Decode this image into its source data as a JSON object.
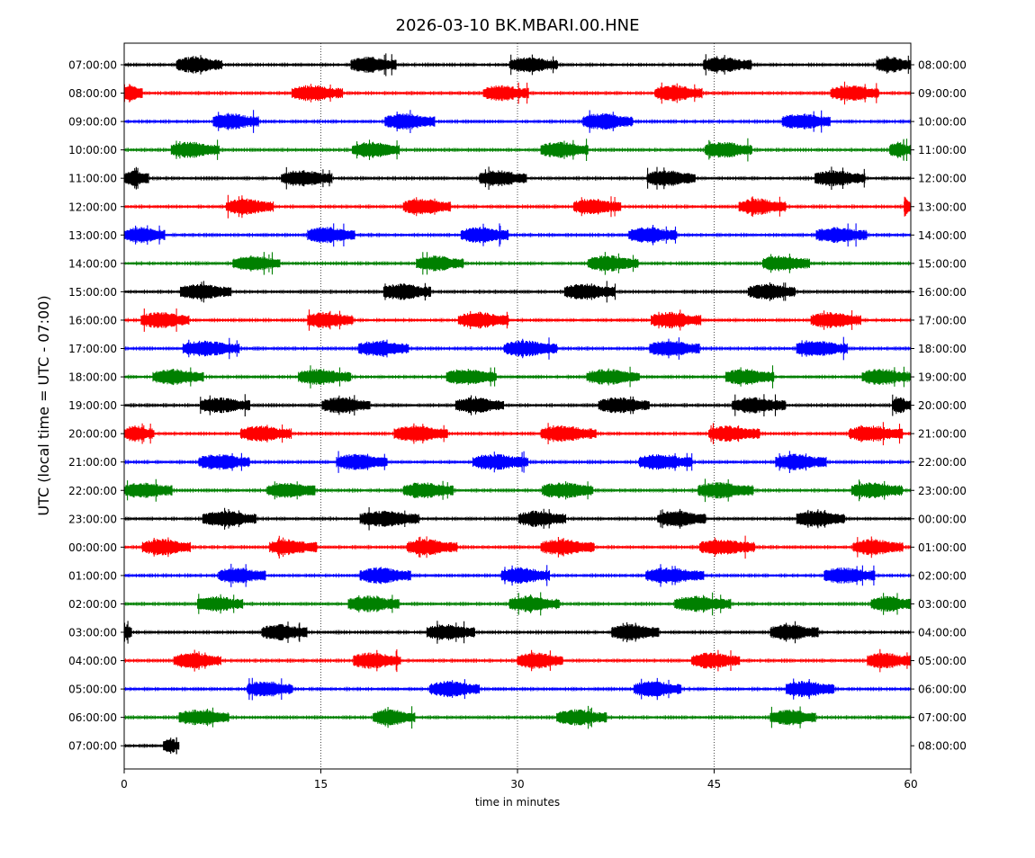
{
  "chart_data": {
    "type": "line",
    "title": "2026-03-10 BK.MBARI.00.HNE",
    "xlabel": "time in minutes",
    "ylabel": "UTC (local time = UTC - 07:00)",
    "xlim": [
      0,
      60
    ],
    "x_ticks": [
      "0",
      "15",
      "30",
      "45",
      "60"
    ],
    "x_tick_values": [
      0,
      15,
      30,
      45,
      60
    ],
    "grid": "vertical dotted lines at 15, 30, 45",
    "series_colors": [
      "#000000",
      "#ff0000",
      "#0000ff",
      "#008000"
    ],
    "rows": [
      {
        "left": "07:00:00",
        "right": "08:00:00",
        "bursts": [
          [
            4,
            7.5
          ],
          [
            17.3,
            20.8
          ],
          [
            29.4,
            33.1
          ],
          [
            44.2,
            47.9
          ],
          [
            57.4,
            60
          ]
        ]
      },
      {
        "left": "08:00:00",
        "right": "09:00:00",
        "bursts": [
          [
            0,
            1.4
          ],
          [
            12.8,
            16.7
          ],
          [
            27.4,
            30.9
          ],
          [
            40.5,
            44.1
          ],
          [
            53.9,
            57.6
          ]
        ]
      },
      {
        "left": "09:00:00",
        "right": "10:00:00",
        "bursts": [
          [
            6.8,
            10.3
          ],
          [
            19.9,
            23.7
          ],
          [
            35,
            38.8
          ],
          [
            50.2,
            53.9
          ]
        ]
      },
      {
        "left": "10:00:00",
        "right": "11:00:00",
        "bursts": [
          [
            3.6,
            7.3
          ],
          [
            17.4,
            21
          ],
          [
            31.8,
            35.4
          ],
          [
            44.3,
            47.9
          ],
          [
            58.4,
            60
          ]
        ]
      },
      {
        "left": "11:00:00",
        "right": "12:00:00",
        "bursts": [
          [
            0,
            1.9
          ],
          [
            12,
            15.9
          ],
          [
            27.1,
            30.7
          ],
          [
            39.9,
            43.6
          ],
          [
            52.7,
            56.5
          ]
        ]
      },
      {
        "left": "12:00:00",
        "right": "13:00:00",
        "bursts": [
          [
            7.8,
            11.4
          ],
          [
            21.3,
            24.9
          ],
          [
            34.3,
            37.9
          ],
          [
            46.9,
            50.5
          ],
          [
            59.5,
            60
          ]
        ]
      },
      {
        "left": "13:00:00",
        "right": "14:00:00",
        "bursts": [
          [
            0,
            3.1
          ],
          [
            14,
            17.6
          ],
          [
            25.7,
            29.3
          ],
          [
            38.5,
            42.2
          ],
          [
            52.8,
            56.7
          ]
        ]
      },
      {
        "left": "14:00:00",
        "right": "15:00:00",
        "bursts": [
          [
            8.3,
            11.9
          ],
          [
            22.3,
            25.9
          ],
          [
            35.4,
            39.2
          ],
          [
            48.7,
            52.3
          ]
        ]
      },
      {
        "left": "15:00:00",
        "right": "16:00:00",
        "bursts": [
          [
            4.3,
            8.2
          ],
          [
            19.8,
            23.4
          ],
          [
            33.6,
            37.5
          ],
          [
            47.6,
            51.2
          ]
        ]
      },
      {
        "left": "16:00:00",
        "right": "17:00:00",
        "bursts": [
          [
            1.3,
            5
          ],
          [
            14,
            17.5
          ],
          [
            25.5,
            29.3
          ],
          [
            40.2,
            44
          ],
          [
            52.4,
            56.2
          ]
        ]
      },
      {
        "left": "17:00:00",
        "right": "18:00:00",
        "bursts": [
          [
            4.5,
            8.8
          ],
          [
            17.9,
            21.7
          ],
          [
            29,
            33
          ],
          [
            40.1,
            43.9
          ],
          [
            51.3,
            55.2
          ]
        ]
      },
      {
        "left": "18:00:00",
        "right": "19:00:00",
        "bursts": [
          [
            2.2,
            6.1
          ],
          [
            13.3,
            17.3
          ],
          [
            24.6,
            28.4
          ],
          [
            35.3,
            39.3
          ],
          [
            45.9,
            49.6
          ],
          [
            56.3,
            60
          ]
        ]
      },
      {
        "left": "19:00:00",
        "right": "20:00:00",
        "bursts": [
          [
            5.8,
            9.6
          ],
          [
            15.1,
            18.8
          ],
          [
            25.3,
            29
          ],
          [
            36.2,
            40.1
          ],
          [
            46.4,
            50.5
          ],
          [
            58.6,
            60
          ]
        ]
      },
      {
        "left": "20:00:00",
        "right": "21:00:00",
        "bursts": [
          [
            0,
            2.3
          ],
          [
            8.9,
            12.8
          ],
          [
            20.6,
            24.7
          ],
          [
            31.8,
            36
          ],
          [
            44.6,
            48.5
          ],
          [
            55.3,
            59.4
          ]
        ]
      },
      {
        "left": "21:00:00",
        "right": "22:00:00",
        "bursts": [
          [
            5.7,
            9.6
          ],
          [
            16.2,
            20.1
          ],
          [
            26.6,
            30.8
          ],
          [
            39.3,
            43.3
          ],
          [
            49.7,
            53.6
          ]
        ]
      },
      {
        "left": "22:00:00",
        "right": "23:00:00",
        "bursts": [
          [
            0,
            3.7
          ],
          [
            10.9,
            14.6
          ],
          [
            21.3,
            25.1
          ],
          [
            31.9,
            35.8
          ],
          [
            43.8,
            48
          ],
          [
            55.5,
            59.4
          ]
        ]
      },
      {
        "left": "23:00:00",
        "right": "00:00:00",
        "bursts": [
          [
            6,
            10.1
          ],
          [
            18,
            22.5
          ],
          [
            30.1,
            33.7
          ],
          [
            40.7,
            44.4
          ],
          [
            51.3,
            55
          ]
        ]
      },
      {
        "left": "00:00:00",
        "right": "01:00:00",
        "bursts": [
          [
            1.4,
            5.1
          ],
          [
            11.1,
            14.7
          ],
          [
            21.6,
            25.4
          ],
          [
            31.8,
            35.9
          ],
          [
            43.9,
            48.1
          ],
          [
            55.6,
            59.4
          ]
        ]
      },
      {
        "left": "01:00:00",
        "right": "02:00:00",
        "bursts": [
          [
            7.2,
            10.8
          ],
          [
            18,
            21.9
          ],
          [
            28.8,
            32.5
          ],
          [
            39.8,
            44.2
          ],
          [
            53.4,
            57.3
          ]
        ]
      },
      {
        "left": "02:00:00",
        "right": "03:00:00",
        "bursts": [
          [
            5.6,
            9.1
          ],
          [
            17.1,
            21
          ],
          [
            29.4,
            33.2
          ],
          [
            42,
            46.3
          ],
          [
            57,
            60
          ]
        ]
      },
      {
        "left": "03:00:00",
        "right": "04:00:00",
        "bursts": [
          [
            0,
            0.6
          ],
          [
            10.5,
            14
          ],
          [
            23.1,
            26.8
          ],
          [
            37.2,
            40.8
          ],
          [
            49.3,
            53
          ]
        ]
      },
      {
        "left": "04:00:00",
        "right": "05:00:00",
        "bursts": [
          [
            3.8,
            7.4
          ],
          [
            17.5,
            21.1
          ],
          [
            30,
            33.5
          ],
          [
            43.3,
            47
          ],
          [
            56.7,
            60
          ]
        ]
      },
      {
        "left": "05:00:00",
        "right": "06:00:00",
        "bursts": [
          [
            9.4,
            12.9
          ],
          [
            23.3,
            27.1
          ],
          [
            38.9,
            42.5
          ],
          [
            50.5,
            54.2
          ]
        ]
      },
      {
        "left": "06:00:00",
        "right": "07:00:00",
        "bursts": [
          [
            4.2,
            8
          ],
          [
            19,
            22.2
          ],
          [
            33,
            36.8
          ],
          [
            49.3,
            52.8
          ]
        ]
      },
      {
        "left": "07:00:00",
        "right": "08:00:00",
        "end": 4.2,
        "bursts": [
          [
            3,
            4.2
          ]
        ]
      }
    ]
  }
}
